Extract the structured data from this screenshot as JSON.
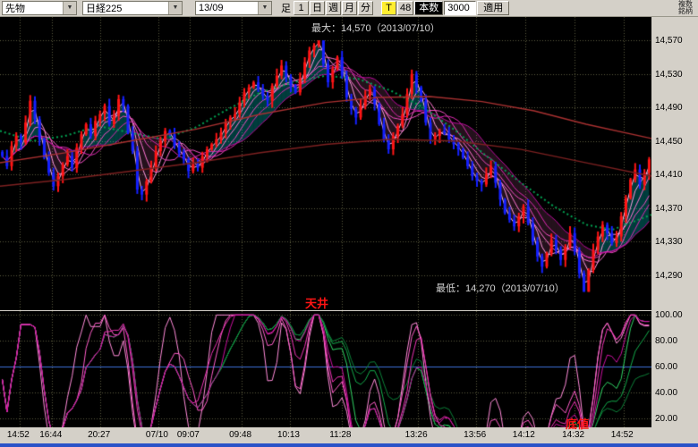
{
  "toolbar": {
    "instrument": "先物",
    "symbol": "日経225",
    "contract_month": "13/09",
    "bar_type_label": "足",
    "period_buttons": [
      "1",
      "日",
      "週",
      "月",
      "分"
    ],
    "tick_button": "T",
    "interval_value": "48",
    "bars_count_label": "本数",
    "bars_count_value": "3000",
    "apply_button": "適用",
    "multi_symbol_button": "複数銘柄"
  },
  "annotations": {
    "max_note": "最大：14,570（2013/07/10）",
    "min_note": "最低：14,270（2013/07/10）",
    "ceiling_note": "天井",
    "bottom_note": "底値"
  },
  "chart_data": {
    "type": "candlestick",
    "main_value_range": [
      14248,
      14598
    ],
    "y_axis": [
      {
        "label": "14,570",
        "value": 14570
      },
      {
        "label": "14,530",
        "value": 14530
      },
      {
        "label": "14,490",
        "value": 14490
      },
      {
        "label": "14,450",
        "value": 14450
      },
      {
        "label": "14,410",
        "value": 14410
      },
      {
        "label": "14,370",
        "value": 14370
      },
      {
        "label": "14,330",
        "value": 14330
      },
      {
        "label": "14,290",
        "value": 14290
      }
    ],
    "x_labels": [
      {
        "label": "14:52",
        "pos": 0.03
      },
      {
        "label": "16:44",
        "pos": 0.08
      },
      {
        "label": "20:27",
        "pos": 0.154
      },
      {
        "label": "07/10",
        "pos": 0.243
      },
      {
        "label": "09:07",
        "pos": 0.291
      },
      {
        "label": "09:48",
        "pos": 0.371
      },
      {
        "label": "10:13",
        "pos": 0.445
      },
      {
        "label": "11:28",
        "pos": 0.525
      },
      {
        "label": "13:26",
        "pos": 0.641
      },
      {
        "label": "13:56",
        "pos": 0.731
      },
      {
        "label": "14:12",
        "pos": 0.806
      },
      {
        "label": "14:32",
        "pos": 0.882
      },
      {
        "label": "14:52",
        "pos": 0.957
      }
    ],
    "closes": [
      14432,
      14420,
      14444,
      14456,
      14448,
      14472,
      14498,
      14476,
      14452,
      14430,
      14412,
      14396,
      14408,
      14422,
      14432,
      14418,
      14442,
      14458,
      14470,
      14456,
      14474,
      14482,
      14492,
      14470,
      14480,
      14500,
      14492,
      14460,
      14438,
      14392,
      14386,
      14402,
      14418,
      14438,
      14450,
      14462,
      14458,
      14444,
      14436,
      14428,
      14414,
      14422,
      14418,
      14432,
      14440,
      14446,
      14452,
      14460,
      14472,
      14478,
      14482,
      14496,
      14508,
      14514,
      14520,
      14512,
      14504,
      14498,
      14516,
      14528,
      14540,
      14526,
      14516,
      14508,
      14524,
      14544,
      14558,
      14564,
      14570,
      14542,
      14520,
      14536,
      14550,
      14528,
      14502,
      14488,
      14478,
      14492,
      14504,
      14512,
      14494,
      14470,
      14452,
      14440,
      14456,
      14468,
      14482,
      14506,
      14530,
      14514,
      14498,
      14472,
      14452,
      14456,
      14462,
      14460,
      14452,
      14446,
      14440,
      14430,
      14420,
      14408,
      14402,
      14398,
      14410,
      14420,
      14400,
      14380,
      14364,
      14356,
      14348,
      14360,
      14372,
      14352,
      14330,
      14312,
      14300,
      14316,
      14332,
      14320,
      14308,
      14324,
      14340,
      14318,
      14292,
      14270,
      14296,
      14320,
      14336,
      14350,
      14340,
      14328,
      14336,
      14360,
      14382,
      14404,
      14416,
      14398,
      14412,
      14428
    ],
    "max_point": {
      "value": 14570,
      "date": "2013/07/10",
      "index": 68
    },
    "min_point": {
      "value": 14270,
      "date": "2013/07/10",
      "index": 125
    },
    "fan_periods": [
      2,
      4,
      6,
      9,
      12,
      16
    ],
    "green_ma_points": [
      [
        0,
        14462
      ],
      [
        0.05,
        14450
      ],
      [
        0.1,
        14456
      ],
      [
        0.15,
        14468
      ],
      [
        0.2,
        14460
      ],
      [
        0.25,
        14452
      ],
      [
        0.3,
        14466
      ],
      [
        0.35,
        14488
      ],
      [
        0.4,
        14508
      ],
      [
        0.45,
        14520
      ],
      [
        0.5,
        14528
      ],
      [
        0.55,
        14524
      ],
      [
        0.6,
        14510
      ],
      [
        0.65,
        14490
      ],
      [
        0.7,
        14462
      ],
      [
        0.75,
        14430
      ],
      [
        0.8,
        14400
      ],
      [
        0.85,
        14372
      ],
      [
        0.9,
        14350
      ],
      [
        0.94,
        14344
      ],
      [
        1,
        14362
      ]
    ],
    "long_ma_lines": [
      {
        "color": "#a83030",
        "points": [
          [
            0,
            14424
          ],
          [
            0.1,
            14436
          ],
          [
            0.2,
            14450
          ],
          [
            0.3,
            14464
          ],
          [
            0.4,
            14482
          ],
          [
            0.5,
            14496
          ],
          [
            0.58,
            14502
          ],
          [
            0.66,
            14503
          ],
          [
            0.74,
            14497
          ],
          [
            0.82,
            14486
          ],
          [
            0.9,
            14470
          ],
          [
            1,
            14453
          ]
        ]
      },
      {
        "color": "#7c2020",
        "points": [
          [
            0,
            14396
          ],
          [
            0.1,
            14404
          ],
          [
            0.2,
            14414
          ],
          [
            0.3,
            14424
          ],
          [
            0.4,
            14436
          ],
          [
            0.5,
            14446
          ],
          [
            0.6,
            14452
          ],
          [
            0.7,
            14450
          ],
          [
            0.8,
            14440
          ],
          [
            0.9,
            14424
          ],
          [
            1,
            14408
          ]
        ]
      }
    ],
    "oscillator": {
      "value_range": [
        13,
        103
      ],
      "tick_labels": [
        {
          "label": "100.00",
          "value": 100
        },
        {
          "label": "80.00",
          "value": 80
        },
        {
          "label": "60.00",
          "value": 60
        },
        {
          "label": "40.00",
          "value": 40
        },
        {
          "label": "20.00",
          "value": 20
        }
      ],
      "midline_value": 60,
      "magenta_periods": [
        7,
        11,
        16,
        22
      ],
      "green_periods": [
        28,
        40,
        55
      ]
    },
    "colors": {
      "chart_bg": "#000000",
      "grid": "#5a5a3c",
      "up_candle": "#ff1414",
      "down_candle": "#1420ff",
      "fan": [
        "#ffc2ea",
        "#ff9ade",
        "#ff74d2",
        "#f24cc2",
        "#dc28b0",
        "#bb0a9b"
      ],
      "green_ma": "#00a050",
      "cyan_fill": "rgba(0,220,220,0.28)",
      "pink_fill": "rgba(255,120,200,0.14)",
      "osc_magenta": [
        "#ff8ad8",
        "#ff5cc8",
        "#ee30b4",
        "#c80f9e"
      ],
      "osc_green": [
        "#2fd464",
        "#12aa4a",
        "#0b8038"
      ],
      "osc_midline": "#3a6fd8",
      "annotation_light": "#d4d4d4",
      "annotation_red": "#ff1414",
      "bottom_bar": "#2a52c8"
    }
  }
}
